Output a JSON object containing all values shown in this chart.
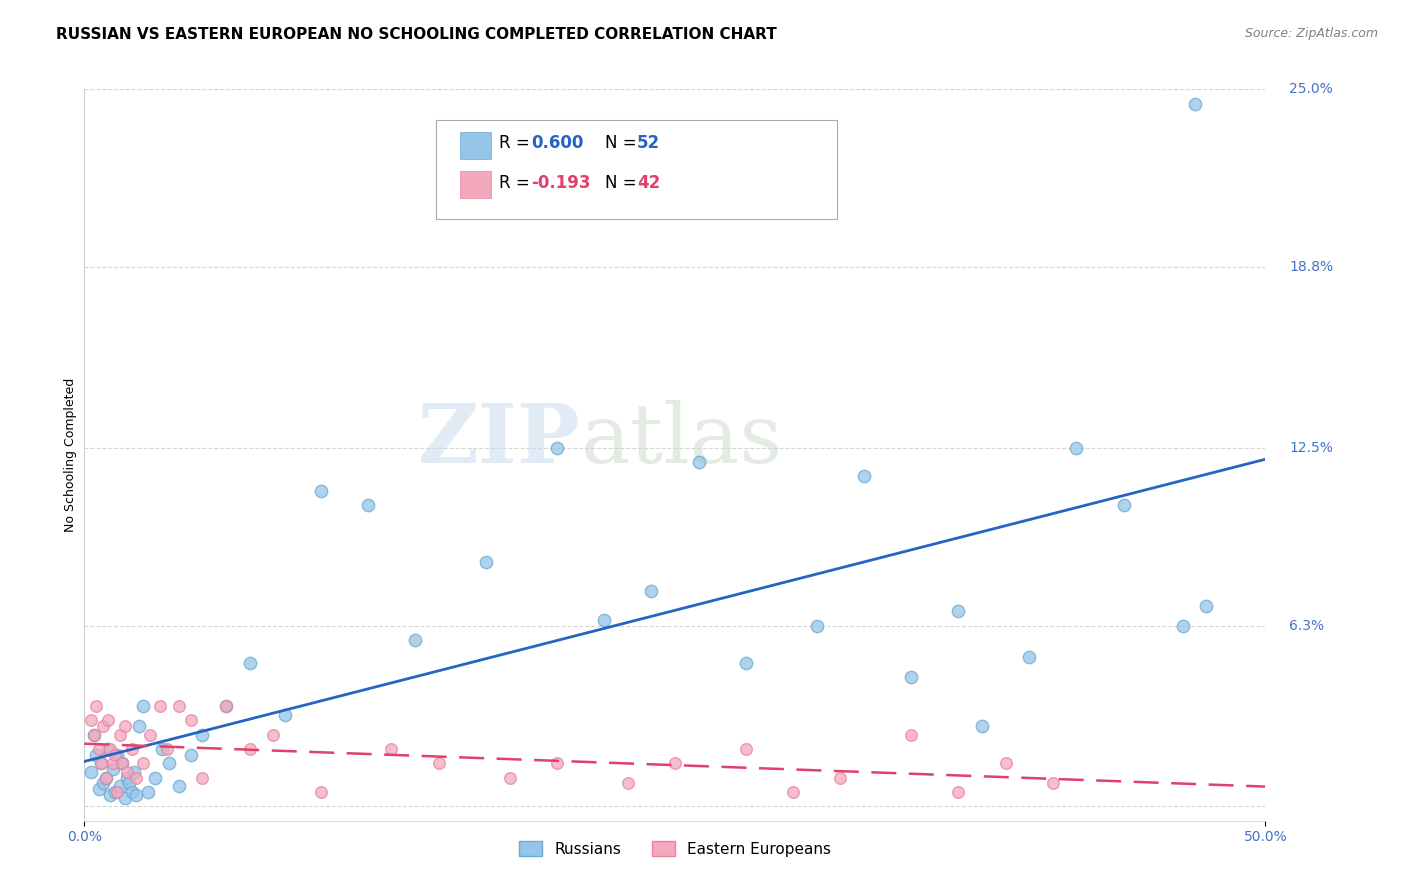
{
  "title": "RUSSIAN VS EASTERN EUROPEAN NO SCHOOLING COMPLETED CORRELATION CHART",
  "source": "Source: ZipAtlas.com",
  "ylabel": "No Schooling Completed",
  "xlim": [
    0.0,
    50.0
  ],
  "ylim": [
    -0.5,
    25.0
  ],
  "ytick_positions": [
    0.0,
    6.3,
    12.5,
    18.8,
    25.0
  ],
  "ytick_labels": [
    "",
    "6.3%",
    "12.5%",
    "18.8%",
    "25.0%"
  ],
  "russian_color": "#95C5E8",
  "russian_edge_color": "#6AAAD4",
  "eastern_color": "#F4A8BC",
  "eastern_edge_color": "#E880A0",
  "russian_line_color": "#2563C4",
  "eastern_line_color": "#E0406A",
  "background_color": "#ffffff",
  "grid_color": "#cccccc",
  "russian_x": [
    0.3,
    0.4,
    0.5,
    0.6,
    0.7,
    0.8,
    0.9,
    1.0,
    1.1,
    1.2,
    1.3,
    1.4,
    1.5,
    1.6,
    1.7,
    1.8,
    1.9,
    2.0,
    2.1,
    2.2,
    2.3,
    2.5,
    2.7,
    3.0,
    3.3,
    3.6,
    4.0,
    4.5,
    5.0,
    6.0,
    7.0,
    8.5,
    10.0,
    12.0,
    14.0,
    17.0,
    20.0,
    22.0,
    24.0,
    26.0,
    28.0,
    31.0,
    33.0,
    35.0,
    37.0,
    38.0,
    40.0,
    42.0,
    44.0,
    46.5,
    47.0,
    47.5
  ],
  "russian_y": [
    1.2,
    2.5,
    1.8,
    0.6,
    1.5,
    0.8,
    1.0,
    2.0,
    0.4,
    1.3,
    0.5,
    1.8,
    0.7,
    1.5,
    0.3,
    1.0,
    0.8,
    0.5,
    1.2,
    0.4,
    2.8,
    3.5,
    0.5,
    1.0,
    2.0,
    1.5,
    0.7,
    1.8,
    2.5,
    3.5,
    5.0,
    3.2,
    11.0,
    10.5,
    5.8,
    8.5,
    12.5,
    6.5,
    7.5,
    12.0,
    5.0,
    6.3,
    11.5,
    4.5,
    6.8,
    2.8,
    5.2,
    12.5,
    10.5,
    6.3,
    24.5,
    7.0
  ],
  "eastern_x": [
    0.3,
    0.4,
    0.5,
    0.6,
    0.7,
    0.8,
    0.9,
    1.0,
    1.1,
    1.2,
    1.3,
    1.4,
    1.5,
    1.6,
    1.7,
    1.8,
    2.0,
    2.2,
    2.5,
    2.8,
    3.2,
    3.5,
    4.0,
    4.5,
    5.0,
    6.0,
    7.0,
    8.0,
    10.0,
    13.0,
    15.0,
    18.0,
    20.0,
    23.0,
    25.0,
    28.0,
    30.0,
    32.0,
    35.0,
    37.0,
    39.0,
    41.0
  ],
  "eastern_y": [
    3.0,
    2.5,
    3.5,
    2.0,
    1.5,
    2.8,
    1.0,
    3.0,
    2.0,
    1.5,
    1.8,
    0.5,
    2.5,
    1.5,
    2.8,
    1.2,
    2.0,
    1.0,
    1.5,
    2.5,
    3.5,
    2.0,
    3.5,
    3.0,
    1.0,
    3.5,
    2.0,
    2.5,
    0.5,
    2.0,
    1.5,
    1.0,
    1.5,
    0.8,
    1.5,
    2.0,
    0.5,
    1.0,
    2.5,
    0.5,
    1.5,
    0.8
  ],
  "russian_marker_size": 80,
  "eastern_marker_size": 70,
  "title_fontsize": 11,
  "axis_label_fontsize": 9,
  "tick_fontsize": 10,
  "legend_fontsize": 12,
  "watermark_zip": "ZIP",
  "watermark_atlas": "atlas",
  "watermark_color_zip": "#C5D8EE",
  "watermark_color_atlas": "#C8D8C8"
}
